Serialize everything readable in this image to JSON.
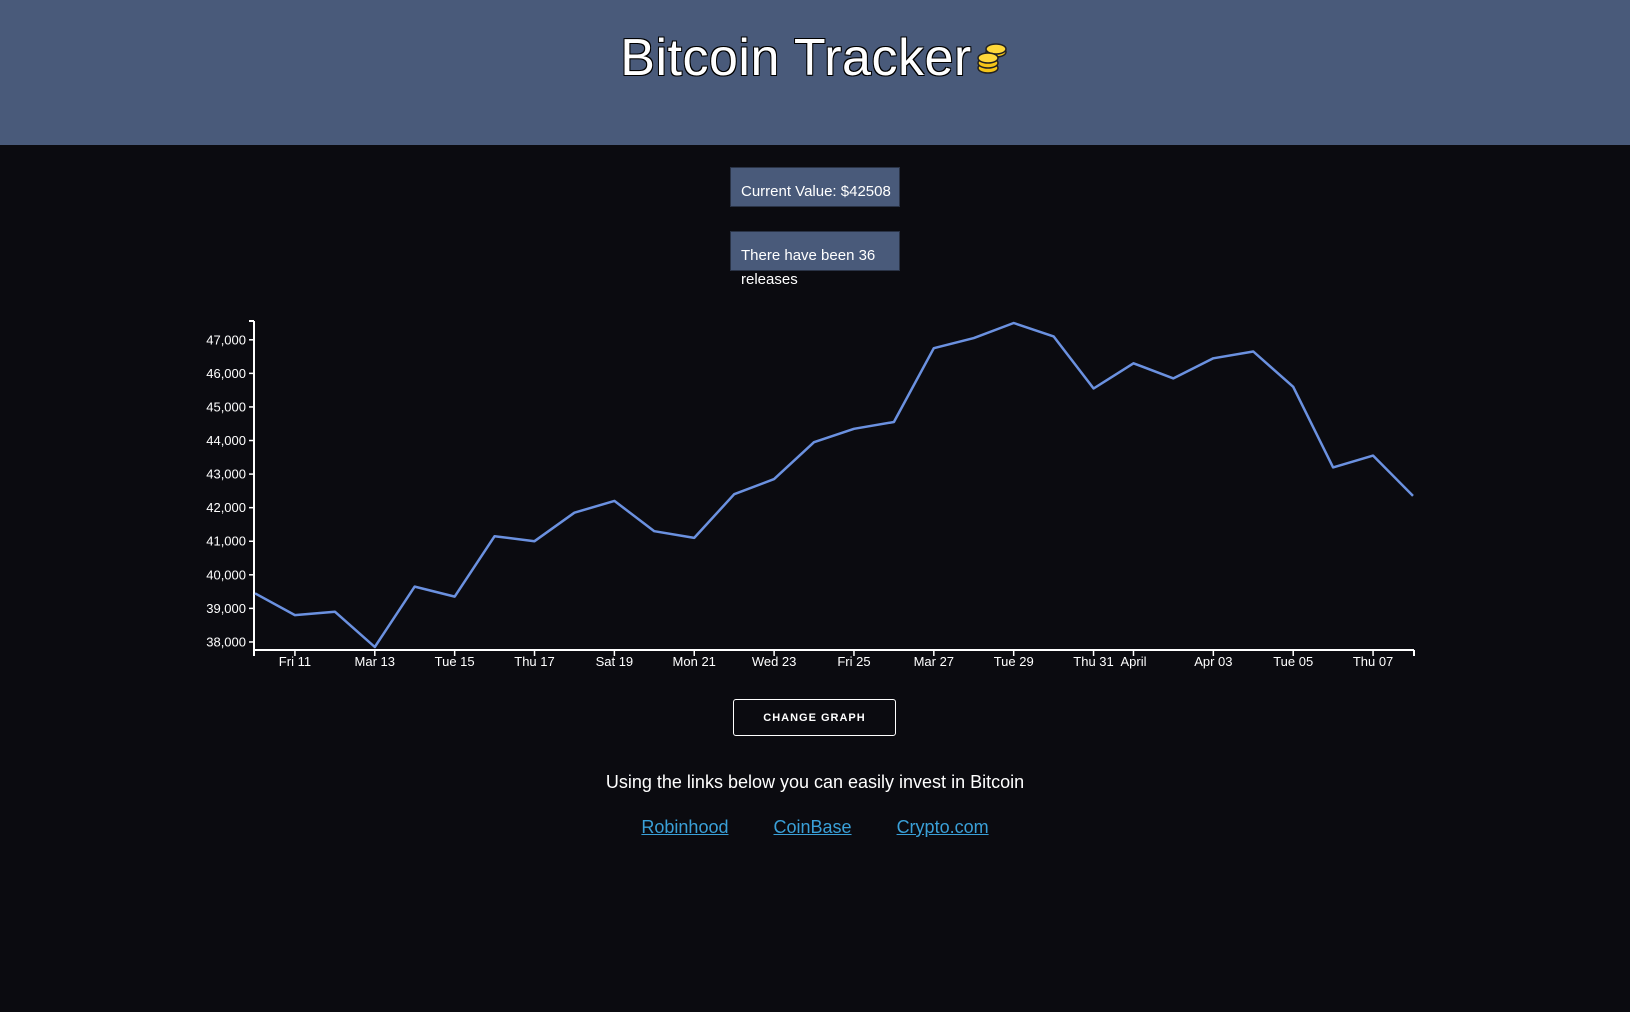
{
  "header": {
    "title": "Bitcoin Tracker",
    "logo_icon": "coins-icon",
    "background": "#495a7a"
  },
  "stats": {
    "current_value": "Current Value: $42508",
    "releases": "There have been 36 releases"
  },
  "chart_data": {
    "type": "line",
    "series": [
      {
        "color": "#6b91e0",
        "values": [
          {
            "x": "2022-03-10",
            "y": 39450
          },
          {
            "x": "2022-03-11",
            "y": 38800
          },
          {
            "x": "2022-03-12",
            "y": 38900
          },
          {
            "x": "2022-03-13",
            "y": 37850
          },
          {
            "x": "2022-03-14",
            "y": 39650
          },
          {
            "x": "2022-03-15",
            "y": 39350
          },
          {
            "x": "2022-03-16",
            "y": 41150
          },
          {
            "x": "2022-03-17",
            "y": 41000
          },
          {
            "x": "2022-03-18",
            "y": 41850
          },
          {
            "x": "2022-03-19",
            "y": 42200
          },
          {
            "x": "2022-03-20",
            "y": 41300
          },
          {
            "x": "2022-03-21",
            "y": 41100
          },
          {
            "x": "2022-03-22",
            "y": 42400
          },
          {
            "x": "2022-03-23",
            "y": 42850
          },
          {
            "x": "2022-03-24",
            "y": 43950
          },
          {
            "x": "2022-03-25",
            "y": 44350
          },
          {
            "x": "2022-03-26",
            "y": 44550
          },
          {
            "x": "2022-03-27",
            "y": 46750
          },
          {
            "x": "2022-03-28",
            "y": 47050
          },
          {
            "x": "2022-03-29",
            "y": 47500
          },
          {
            "x": "2022-03-30",
            "y": 47100
          },
          {
            "x": "2022-03-31",
            "y": 45550
          },
          {
            "x": "2022-04-01",
            "y": 46300
          },
          {
            "x": "2022-04-02",
            "y": 45850
          },
          {
            "x": "2022-04-03",
            "y": 46450
          },
          {
            "x": "2022-04-04",
            "y": 46650
          },
          {
            "x": "2022-04-05",
            "y": 45600
          },
          {
            "x": "2022-04-06",
            "y": 43200
          },
          {
            "x": "2022-04-07",
            "y": 43550
          },
          {
            "x": "2022-04-08",
            "y": 42350
          }
        ]
      }
    ],
    "y_ticks": [
      "38,000",
      "39,000",
      "40,000",
      "41,000",
      "42,000",
      "43,000",
      "44,000",
      "45,000",
      "46,000",
      "47,000"
    ],
    "x_ticks": [
      {
        "label": "Fri 11",
        "x": "2022-03-11"
      },
      {
        "label": "Mar 13",
        "x": "2022-03-13"
      },
      {
        "label": "Tue 15",
        "x": "2022-03-15"
      },
      {
        "label": "Thu 17",
        "x": "2022-03-17"
      },
      {
        "label": "Sat 19",
        "x": "2022-03-19"
      },
      {
        "label": "Mon 21",
        "x": "2022-03-21"
      },
      {
        "label": "Wed 23",
        "x": "2022-03-23"
      },
      {
        "label": "Fri 25",
        "x": "2022-03-25"
      },
      {
        "label": "Mar 27",
        "x": "2022-03-27"
      },
      {
        "label": "Tue 29",
        "x": "2022-03-29"
      },
      {
        "label": "Thu 31",
        "x": "2022-03-31"
      },
      {
        "label": "April",
        "x": "2022-04-01"
      },
      {
        "label": "Apr 03",
        "x": "2022-04-03"
      },
      {
        "label": "Tue 05",
        "x": "2022-04-05"
      },
      {
        "label": "Thu 07",
        "x": "2022-04-07"
      }
    ],
    "xlim": [
      "2022-03-10",
      "2022-04-08"
    ],
    "ylim": [
      37850,
      47500
    ],
    "grid": false
  },
  "controls": {
    "change_graph_label": "CHANGE GRAPH"
  },
  "invest": {
    "text": "Using the links below you can easily invest in Bitcoin",
    "links": [
      "Robinhood",
      "CoinBase",
      "Crypto.com"
    ],
    "link_color": "#3aa0d8"
  }
}
